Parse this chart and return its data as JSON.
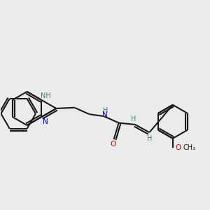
{
  "bg_color": "#ebebeb",
  "bond_color": "#1a1a1a",
  "N_color": "#0000cc",
  "O_color": "#cc0000",
  "H_color": "#3a7a7a",
  "line_width": 1.5,
  "figsize": [
    3.0,
    3.0
  ],
  "dpi": 100,
  "xlim": [
    -2.5,
    9.5
  ],
  "ylim": [
    -3.5,
    4.5
  ]
}
